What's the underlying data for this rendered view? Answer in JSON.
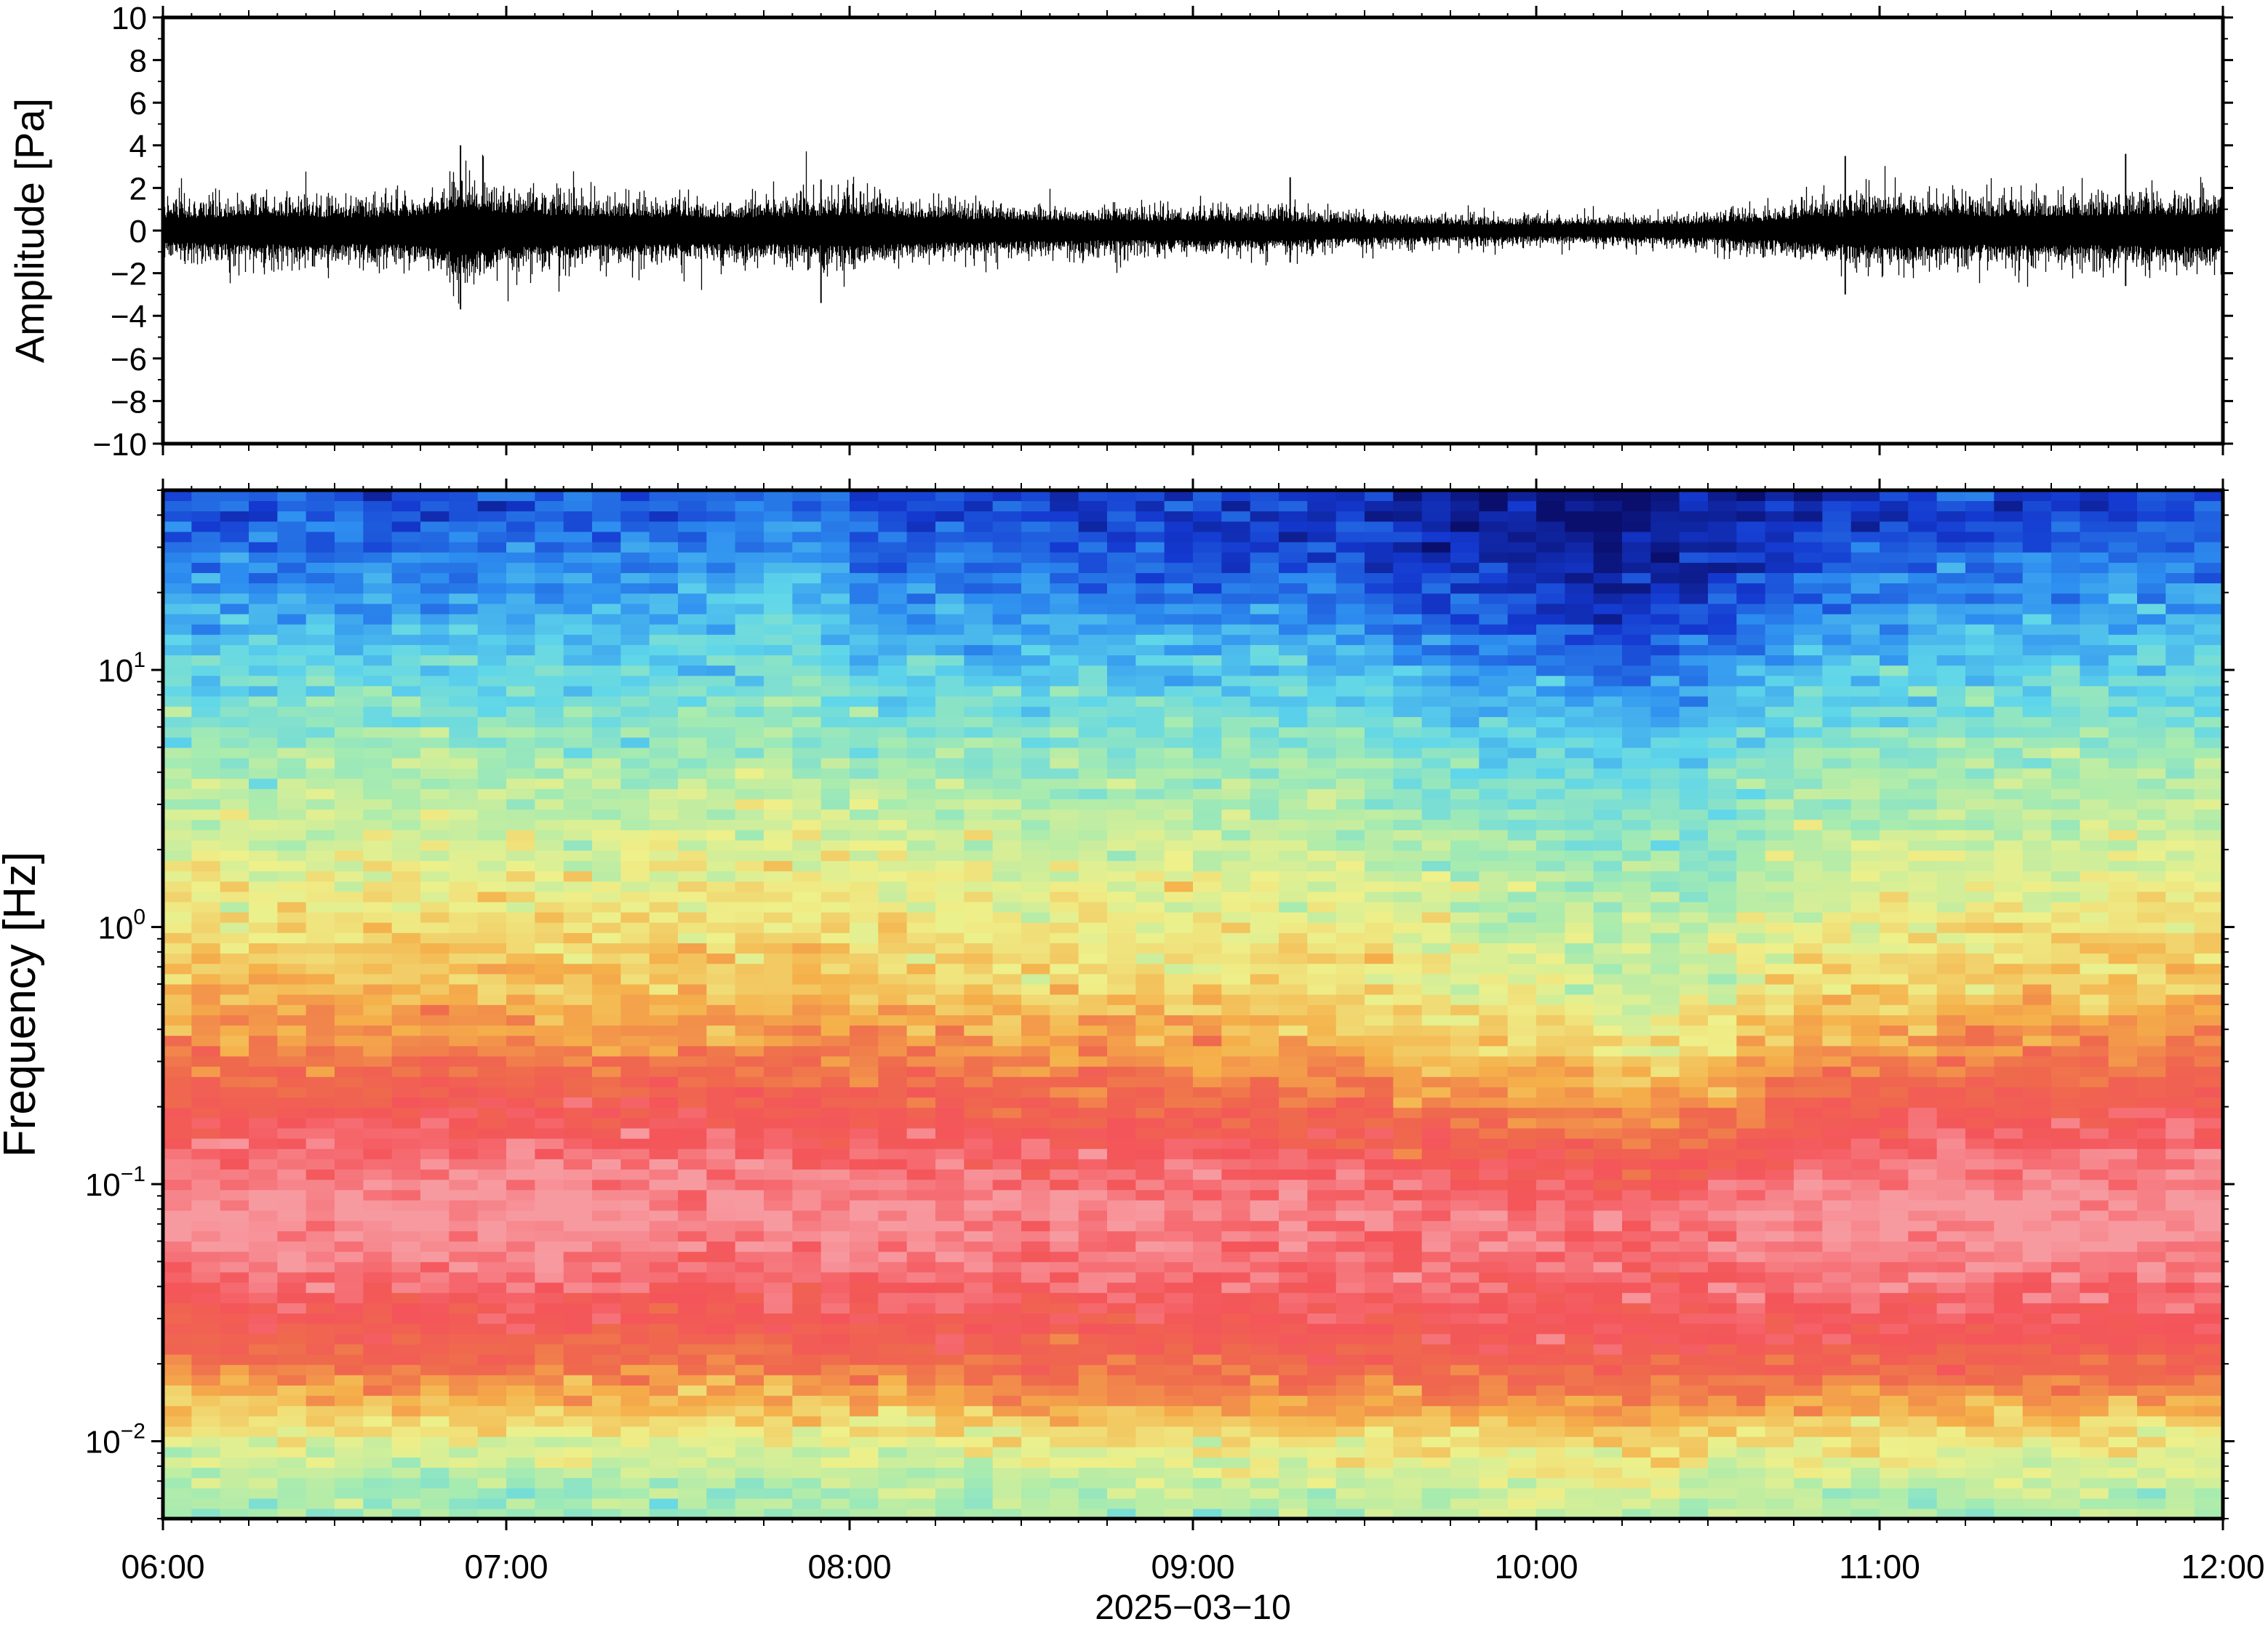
{
  "chart_data": [
    {
      "type": "line",
      "panel": "waveform",
      "ylabel": "Amplitude [Pa]",
      "ylim": [
        -10,
        10
      ],
      "yticks": [
        "10",
        "8",
        "6",
        "4",
        "2",
        "0",
        "−2",
        "−4",
        "−6",
        "−8",
        "−10"
      ],
      "ytick_values": [
        10,
        8,
        6,
        4,
        2,
        0,
        -2,
        -4,
        -6,
        -8,
        -10
      ],
      "xlim": [
        "2025-03-10 06:00",
        "2025-03-10 12:00"
      ],
      "line_color": "#000000",
      "envelope_hours": [
        6.0,
        6.25,
        6.5,
        6.75,
        6.87,
        7.0,
        7.25,
        7.5,
        7.75,
        8.0,
        8.25,
        8.5,
        8.75,
        9.0,
        9.25,
        9.5,
        9.75,
        10.0,
        10.25,
        10.5,
        10.75,
        10.9,
        11.0,
        11.25,
        11.5,
        11.75,
        12.0
      ],
      "envelope_amplitude_pa": [
        1.0,
        1.2,
        1.1,
        1.2,
        2.0,
        1.4,
        1.2,
        1.1,
        1.1,
        1.3,
        1.0,
        0.9,
        0.8,
        0.8,
        0.8,
        0.6,
        0.5,
        0.5,
        0.5,
        0.6,
        0.9,
        1.2,
        1.3,
        1.2,
        1.2,
        1.3,
        1.3
      ],
      "spikes": [
        {
          "t": "06:52",
          "max": 4.0,
          "min": -3.7
        },
        {
          "t": "07:55",
          "max": 2.4,
          "min": -3.4
        },
        {
          "t": "09:17",
          "max": 2.5,
          "min": -1.5
        },
        {
          "t": "10:54",
          "max": 3.5,
          "min": -3.0
        },
        {
          "t": "11:43",
          "max": 3.6,
          "min": -2.6
        }
      ]
    },
    {
      "type": "heatmap",
      "panel": "spectrogram",
      "ylabel": "Frequency [Hz]",
      "yscale": "log",
      "ylim": [
        0.005,
        50
      ],
      "yticks": [
        {
          "value": 10,
          "base": "10",
          "exp": "1"
        },
        {
          "value": 1,
          "base": "10",
          "exp": "0"
        },
        {
          "value": 0.1,
          "base": "10",
          "exp": "−1"
        },
        {
          "value": 0.01,
          "base": "10",
          "exp": "−2"
        }
      ],
      "xlabel": "2025−03−10",
      "xticks": [
        "06:00",
        "07:00",
        "08:00",
        "09:00",
        "10:00",
        "11:00",
        "12:00"
      ],
      "xtick_hours": [
        6,
        7,
        8,
        9,
        10,
        11,
        12
      ],
      "xlim": [
        "2025-03-10 06:00",
        "2025-03-10 12:00"
      ],
      "colormap": [
        "#0a0f6e",
        "#1439d0",
        "#2e8ff0",
        "#5fd6ea",
        "#a6ebb0",
        "#eef08a",
        "#f5b04a",
        "#ef6a4d",
        "#f4555a",
        "#f79aa0"
      ],
      "level_range": [
        0,
        9
      ],
      "time_hours": [
        6.0,
        6.5,
        7.0,
        7.5,
        7.85,
        8.0,
        8.5,
        9.0,
        9.5,
        9.6,
        10.0,
        10.25,
        10.5,
        10.75,
        11.0,
        11.5,
        12.0
      ],
      "freq_hz": [
        0.006,
        0.01,
        0.015,
        0.025,
        0.05,
        0.08,
        0.15,
        0.3,
        0.6,
        1.5,
        4,
        10,
        20,
        40
      ],
      "levels": [
        [
          4.0,
          4.7,
          5.7,
          7.3,
          8.6,
          9.0,
          8.2,
          6.8,
          5.8,
          5.0,
          4.1,
          3.0,
          2.2,
          1.3
        ],
        [
          4.0,
          4.8,
          6.0,
          7.5,
          8.6,
          9.0,
          8.3,
          6.8,
          5.8,
          5.0,
          4.1,
          3.0,
          2.2,
          1.4
        ],
        [
          3.9,
          4.8,
          6.0,
          7.4,
          8.7,
          9.1,
          8.3,
          6.9,
          5.8,
          5.0,
          4.2,
          3.1,
          2.3,
          1.4
        ],
        [
          4.0,
          4.8,
          6.0,
          7.4,
          8.5,
          9.0,
          8.2,
          6.8,
          5.7,
          5.0,
          4.1,
          3.0,
          2.2,
          1.3
        ],
        [
          4.0,
          4.8,
          5.9,
          7.3,
          8.5,
          8.9,
          8.2,
          6.7,
          5.8,
          5.0,
          4.3,
          3.6,
          2.8,
          1.8
        ],
        [
          4.1,
          4.9,
          6.1,
          7.5,
          8.6,
          8.9,
          8.1,
          6.6,
          5.6,
          4.9,
          4.0,
          2.9,
          2.0,
          1.2
        ],
        [
          4.1,
          5.0,
          6.3,
          7.6,
          8.6,
          8.8,
          8.0,
          6.5,
          5.5,
          4.8,
          4.0,
          2.9,
          1.9,
          1.1
        ],
        [
          4.2,
          5.1,
          6.5,
          7.6,
          8.5,
          8.7,
          7.8,
          6.4,
          5.5,
          4.8,
          4.0,
          2.8,
          1.8,
          1.0
        ],
        [
          4.3,
          5.2,
          6.5,
          7.7,
          8.5,
          8.7,
          7.7,
          6.2,
          5.4,
          4.7,
          3.9,
          2.7,
          1.6,
          0.8
        ],
        [
          4.3,
          5.2,
          6.5,
          7.7,
          8.4,
          8.6,
          7.5,
          6.0,
          5.1,
          4.4,
          3.6,
          2.4,
          1.3,
          0.5
        ],
        [
          4.4,
          5.3,
          6.6,
          7.7,
          8.4,
          8.5,
          7.3,
          5.7,
          4.8,
          4.2,
          3.3,
          2.0,
          0.9,
          0.3
        ],
        [
          4.5,
          5.4,
          6.7,
          7.7,
          8.3,
          8.3,
          7.0,
          5.3,
          4.4,
          4.0,
          3.2,
          1.6,
          0.5,
          0.1
        ],
        [
          4.4,
          5.3,
          6.6,
          7.7,
          8.4,
          8.5,
          7.1,
          5.5,
          4.6,
          4.0,
          3.3,
          2.0,
          0.8,
          0.3
        ],
        [
          4.3,
          5.2,
          6.5,
          7.8,
          8.6,
          8.9,
          7.9,
          6.4,
          5.2,
          4.5,
          3.7,
          2.7,
          1.6,
          0.8
        ],
        [
          4.2,
          5.1,
          6.4,
          7.8,
          8.6,
          9.1,
          8.2,
          6.6,
          5.5,
          4.7,
          3.9,
          2.9,
          1.9,
          1.0
        ],
        [
          4.2,
          5.1,
          6.4,
          7.8,
          8.7,
          9.1,
          8.3,
          6.8,
          5.7,
          4.9,
          4.0,
          3.0,
          2.1,
          1.1
        ],
        [
          4.2,
          5.0,
          6.3,
          7.7,
          8.7,
          9.1,
          8.3,
          6.9,
          5.8,
          5.0,
          4.1,
          3.0,
          2.2,
          1.2
        ]
      ]
    }
  ]
}
